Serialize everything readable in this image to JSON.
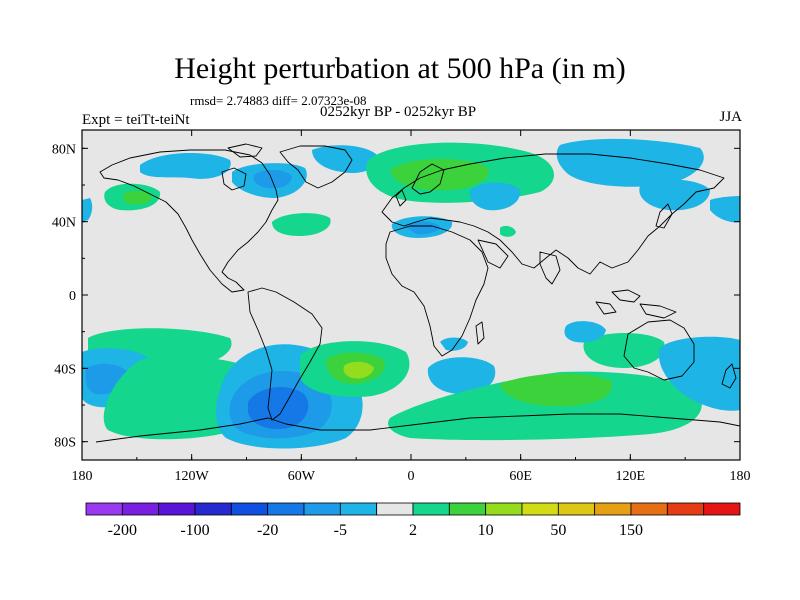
{
  "title": "Height perturbation at 500 hPa (in m)",
  "stats": "rmsd= 2.74883 diff= 2.07323e-08",
  "period": "0252kyr BP - 0252kyr BP",
  "experiment": "Expt = teiTt-teiNt",
  "season": "JJA",
  "map": {
    "lat_ticks": [
      {
        "value": 80,
        "label": "80N"
      },
      {
        "value": 40,
        "label": "40N"
      },
      {
        "value": 0,
        "label": "0"
      },
      {
        "value": -40,
        "label": "40S"
      },
      {
        "value": -80,
        "label": "80S"
      }
    ],
    "lon_ticks": [
      {
        "value": -180,
        "label": "180"
      },
      {
        "value": -120,
        "label": "120W"
      },
      {
        "value": -60,
        "label": "60W"
      },
      {
        "value": 0,
        "label": "0"
      },
      {
        "value": 60,
        "label": "60E"
      },
      {
        "value": 120,
        "label": "120E"
      },
      {
        "value": 180,
        "label": "180"
      }
    ],
    "lat_range": [
      -90,
      90
    ],
    "lon_range": [
      -180,
      180
    ],
    "background_color": "#e6e6e6"
  },
  "colorbar": {
    "colors": [
      "#9a3af0",
      "#7a1ee0",
      "#5a14d8",
      "#2828d0",
      "#1050e0",
      "#1478e6",
      "#1e9be8",
      "#1eb4e6",
      "#e6e6e6",
      "#14d68c",
      "#3cd23c",
      "#96dc1e",
      "#d2dc14",
      "#dcc814",
      "#e6a014",
      "#e66e14",
      "#e63c14",
      "#e61414"
    ],
    "labels": [
      {
        "index": 1,
        "text": "-200"
      },
      {
        "index": 3,
        "text": "-100"
      },
      {
        "index": 5,
        "text": "-20"
      },
      {
        "index": 7,
        "text": "-5"
      },
      {
        "index": 9,
        "text": "2"
      },
      {
        "index": 11,
        "text": "10"
      },
      {
        "index": 13,
        "text": "50"
      },
      {
        "index": 15,
        "text": "150"
      }
    ]
  },
  "field_colors": {
    "blue_light": "#1eb4e6",
    "blue_mid": "#1e9be8",
    "blue_dark": "#1478e6",
    "green": "#14d68c",
    "green_mid": "#3cd23c",
    "yellow_green": "#96dc1e",
    "yellow": "#d2dc14"
  }
}
